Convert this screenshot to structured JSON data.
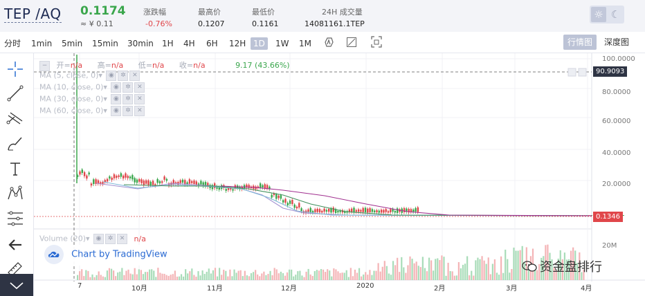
{
  "header": {
    "pair": "TEP /AQ",
    "price": "0.1174",
    "cny_price": "≈ ¥ 0.11",
    "stats": [
      {
        "label": "涨跌幅",
        "value": "-0.76%",
        "negative": true
      },
      {
        "label": "最高价",
        "value": "0.1207",
        "negative": false
      },
      {
        "label": "最低价",
        "value": "0.1161",
        "negative": false
      },
      {
        "label": "24H 成交量",
        "value": "14081161.1TEP",
        "negative": false
      }
    ]
  },
  "toolbar": {
    "timeframes": [
      "分时",
      "1min",
      "5min",
      "15min",
      "30min",
      "1H",
      "4H",
      "6H",
      "12H",
      "1D",
      "1W",
      "1M"
    ],
    "selected": "1D",
    "view_buttons": [
      "行情图",
      "深度图"
    ],
    "active_view": "行情图"
  },
  "legend": {
    "open_label": "开=",
    "open_val": "n/a",
    "high_label": "高=",
    "high_val": "n/a",
    "low_label": "低=",
    "low_val": "n/a",
    "close_label": "收=",
    "close_val": "n/a",
    "change": "9.17 (43.66%)",
    "ma": [
      "MA (5, close, 0)",
      "MA (10, close, 0)",
      "MA (30, close, 0)",
      "MA (60, close, 0)"
    ],
    "volume_label": "Volume (20)",
    "volume_val": "n/a"
  },
  "axis": {
    "y_labels": [
      "100.0000",
      "80.0000",
      "60.0000",
      "40.0000",
      "20.0000"
    ],
    "crosshair_value": "90.9093",
    "last_price": "0.1346",
    "volume_label": "20M",
    "x_labels": [
      "7",
      "10月",
      "11月",
      "12月",
      "2020",
      "2月",
      "3月",
      "4月"
    ]
  },
  "tv_logo": "Chart by TradingView",
  "watermark": "资金盘排行",
  "colors": {
    "up": "#3aa64c",
    "down": "#e0464a",
    "ma5": "#a08fd0",
    "ma10": "#7fb7d8",
    "ma30": "#3f8f5a",
    "ma60": "#a02f8f",
    "crosshair": "#555555"
  }
}
